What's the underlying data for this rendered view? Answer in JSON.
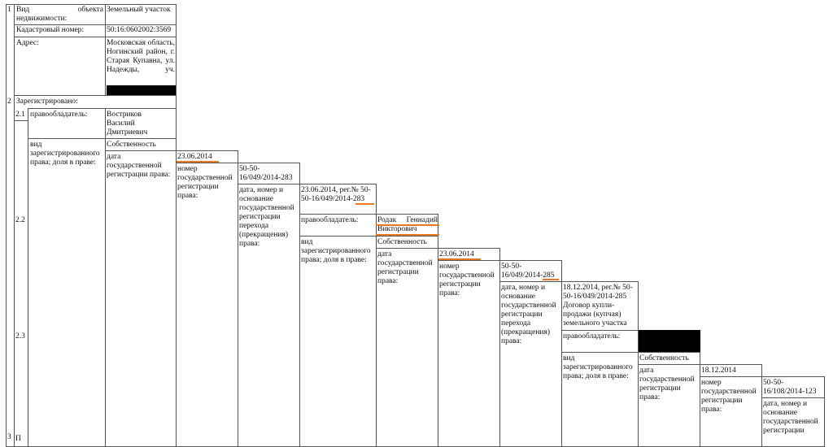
{
  "sections": {
    "n1": "1",
    "n2": "2",
    "n21": "2.1",
    "n22": "2.2",
    "n23": "2.3",
    "n3": "3",
    "last_row_stub": "П"
  },
  "object": {
    "type_label": "Вид объекта недвижимости:",
    "type_value": "Земельный участок",
    "cadastral_label": "Кадастровый номер:",
    "cadastral_value": "50:16:0602002:3569",
    "address_label": "Адрес:",
    "address_value": "Московская область, Ногинский район, г. Старая Купавна, ул. Надежды, уч."
  },
  "registered_label": "Зарегистрировано:",
  "record1": {
    "holder_label": "правообладатель:",
    "holder_value": "Востриков Василий Дмитриевич",
    "right_label": "вид зарегистрированного права; доля в праве:",
    "right_value": "Собственность",
    "date_label": "дата государственной регистрации права:",
    "date_value": "23.06.2014",
    "number_label": "номер государственной регистрации права:",
    "number_value": "50-50-16/049/2014-283",
    "basis_label": "дата, номер и основание государственной регистрации перехода (прекращения) права:",
    "basis_value": "23.06.2014, рег.№ 50-50-16/049/2014-283"
  },
  "record2": {
    "holder_label": "правообладатель:",
    "holder_value": "Родак Геннадий Викторович",
    "right_label": "вид зарегистрированного права; доля в праве:",
    "right_value": "Собственность",
    "date_label": "дата государственной регистрации права:",
    "date_value": "23.06.2014",
    "number_label": "номер государственной регистрации права:",
    "number_value": "50-50-16/049/2014-285",
    "basis_label": "дата, номер и основание государственной регистрации перехода (прекращения) права:",
    "basis_value": "18.12.2014, рег.№ 50-50-16/049/2014-285 Договор купли-продажи (купчая) земельного участка"
  },
  "record3": {
    "holder_label": "правообладатель:",
    "right_label": "вид зарегистрированного права; доля в праве:",
    "right_value": "Собственность",
    "date_label": "дата государственной регистрации права:",
    "date_value": "18.12.2014",
    "number_label": "номер государственной регистрации права:",
    "number_value": "50-50-16/108/2014-123",
    "basis_label": "дата, номер и основание государственной регистрации"
  },
  "colors": {
    "highlight": "#e87722",
    "redaction": "#000000"
  }
}
